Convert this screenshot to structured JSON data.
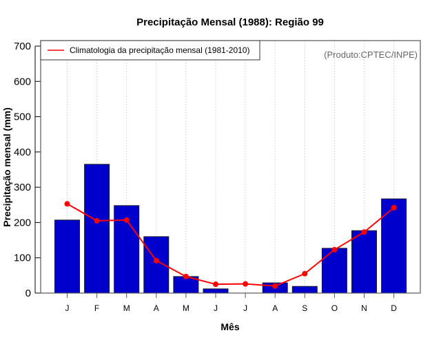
{
  "chart_data": {
    "type": "bar",
    "title": "Precipitação Mensal (1988): Região 99",
    "xlabel": "Mês",
    "ylabel": "Precipitação mensal (mm)",
    "ylim": [
      0,
      700
    ],
    "yticks": [
      0,
      100,
      200,
      300,
      400,
      500,
      600,
      700
    ],
    "categories": [
      "J",
      "F",
      "M",
      "A",
      "M",
      "J",
      "J",
      "A",
      "S",
      "O",
      "N",
      "D"
    ],
    "grid": "vertical dotted at category centers",
    "series": [
      {
        "name": "Precipitação mensal 1988",
        "type": "bar",
        "color": "#0000cd",
        "values": [
          207,
          365,
          248,
          160,
          47,
          12,
          0,
          29,
          19,
          127,
          177,
          267
        ]
      },
      {
        "name": "Climatologia da precipitação mensal (1981-2010)",
        "type": "line",
        "color": "#ff0000",
        "values": [
          253,
          205,
          207,
          92,
          47,
          25,
          26,
          20,
          55,
          123,
          173,
          242
        ]
      }
    ],
    "legend": {
      "position": "top-left",
      "entries": [
        "Climatologia da precipitação mensal (1981-2010)"
      ]
    },
    "annotation": "(Produto:CPTEC/INPE)"
  }
}
